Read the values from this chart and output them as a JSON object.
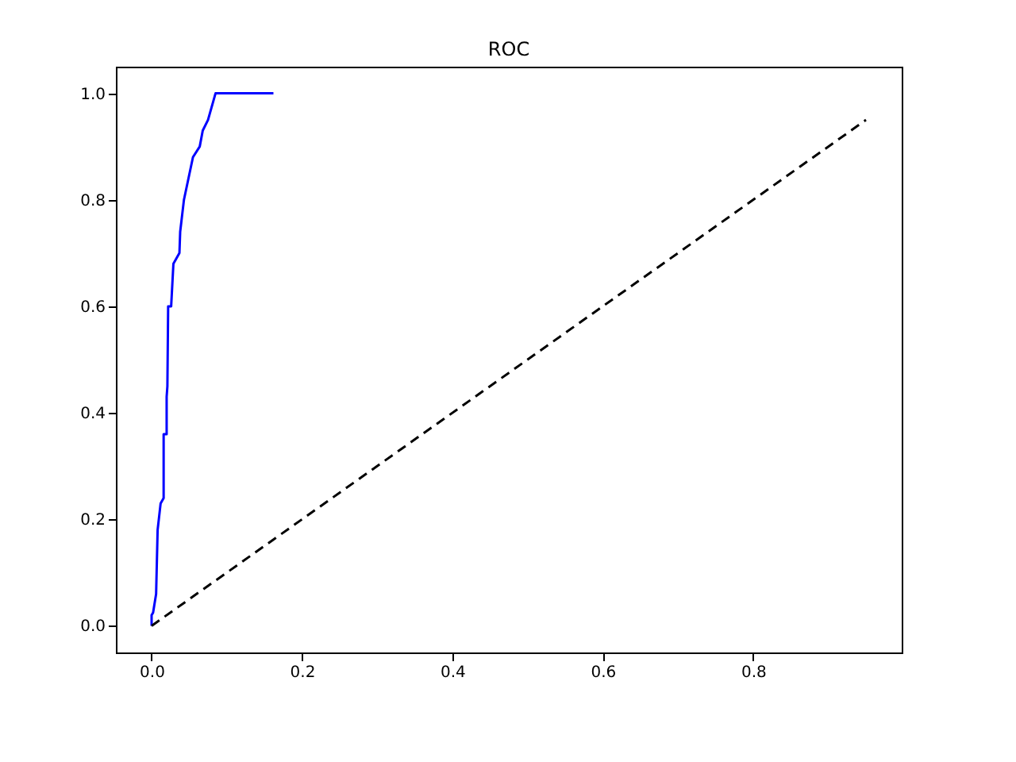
{
  "chart_data": {
    "type": "line",
    "title": "ROC",
    "series": [
      {
        "color": "#0000ff",
        "line_style": "solid",
        "x": [
          0,
          0,
          0.002,
          0.006,
          0.008,
          0.012,
          0.016,
          0.016,
          0.02,
          0.02,
          0.021,
          0.022,
          0.026,
          0.029,
          0.037,
          0.038,
          0.043,
          0.055,
          0.064,
          0.068,
          0.075,
          0.085,
          0.162
        ],
        "values": [
          0,
          0.02,
          0.025,
          0.06,
          0.18,
          0.23,
          0.24,
          0.36,
          0.36,
          0.43,
          0.45,
          0.6,
          0.6,
          0.68,
          0.7,
          0.74,
          0.8,
          0.88,
          0.9,
          0.93,
          0.95,
          1.0,
          1.0
        ]
      },
      {
        "color": "#000000",
        "line_style": "dashed",
        "x": [
          0,
          0.95
        ],
        "values": [
          0,
          0.95
        ]
      }
    ],
    "xlim": [
      -0.0475,
      0.9975
    ],
    "ylim": [
      -0.05,
      1.05
    ],
    "xticks": [
      {
        "value": 0,
        "label": "0.0"
      },
      0.2,
      0.4,
      0.6,
      0.8
    ],
    "yticks": [
      {
        "value": 0,
        "label": "0.0"
      },
      0.2,
      0.4,
      0.6,
      0.8,
      {
        "value": 1,
        "label": "1.0"
      }
    ],
    "grid": false
  }
}
